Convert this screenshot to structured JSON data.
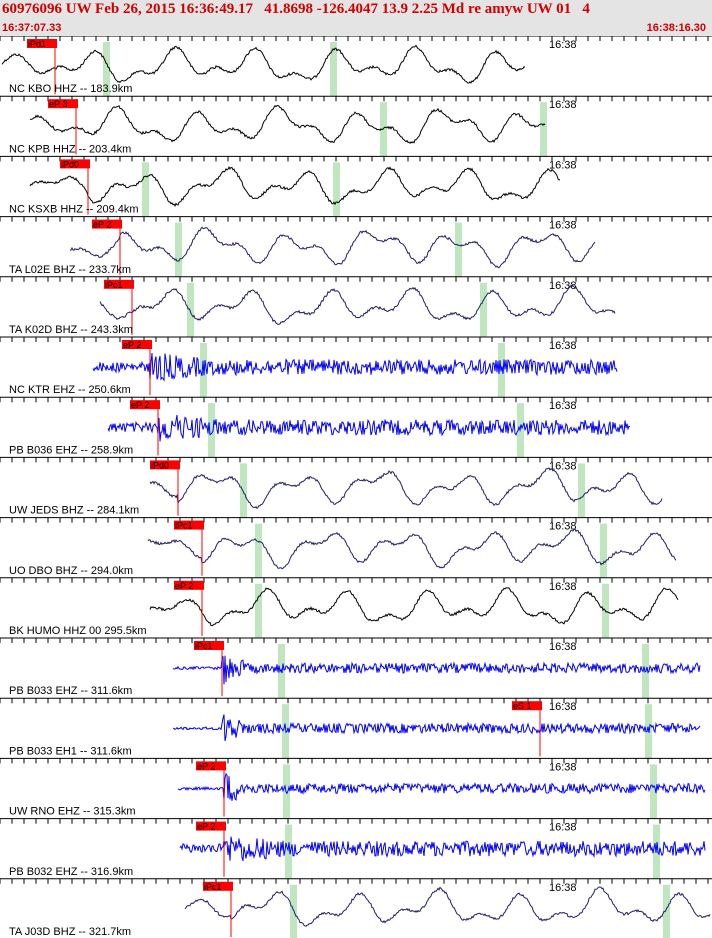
{
  "header": {
    "title": "60976096 UW Feb 26, 2015 16:36:49.17   41.8698 -126.4047 13.9 2.25 Md re amyw UW 01   4",
    "start_time": "16:37:07.33",
    "end_time": "16:38:16.30"
  },
  "colors": {
    "header_bg": "#e4e4e4",
    "header_text": "#d00000",
    "pick": "#ff0000",
    "trace_black": "#000000",
    "trace_blue": "#0000ff",
    "trace_navy": "#202060",
    "phase_band": "#bfe6bf"
  },
  "chart_data": {
    "type": "seismogram",
    "time_axis": {
      "start": "16:37:07.33",
      "end": "16:38:16.30",
      "minute_label": "16:38"
    },
    "traces": [
      {
        "label": "NC KBO HHZ -- 183.9km",
        "pick": "iPd1",
        "style": "smooth",
        "color": "black"
      },
      {
        "label": "NC KPB HHZ -- 203.4km",
        "pick": "eP 3",
        "style": "smooth",
        "color": "black"
      },
      {
        "label": "NC KSXB HHZ -- 209.4km",
        "pick": "iPd0",
        "style": "smooth",
        "color": "black"
      },
      {
        "label": "TA L02E BHZ -- 233.7km",
        "pick": "eP 2",
        "style": "smooth",
        "color": "navy"
      },
      {
        "label": "TA K02D BHZ -- 243.3km",
        "pick": "iPc1",
        "style": "smooth",
        "color": "navy"
      },
      {
        "label": "NC KTR EHZ -- 250.6km",
        "pick": "eP 2",
        "style": "noisy",
        "color": "blue"
      },
      {
        "label": "PB B036 EHZ -- 258.9km",
        "pick": "eP 2",
        "style": "noisy",
        "color": "blue"
      },
      {
        "label": "UW JEDS BHZ -- 284.1km",
        "pick": "iPd0",
        "style": "smooth",
        "color": "navy"
      },
      {
        "label": "UO DBO BHZ -- 294.0km",
        "pick": "iPc1",
        "style": "smooth",
        "color": "navy"
      },
      {
        "label": "BK HUMO HHZ 00 295.5km",
        "pick": "eP 2",
        "style": "smooth",
        "color": "black"
      },
      {
        "label": "PB B033 EHZ -- 311.6km",
        "pick": "iPc1",
        "style": "spiky",
        "color": "blue"
      },
      {
        "label": "PB B033 EH1 -- 311.6km",
        "pick": "",
        "pick_s": "eS 1",
        "style": "spiky",
        "color": "blue"
      },
      {
        "label": "UW RNO EHZ -- 315.3km",
        "pick": "eP 2",
        "style": "spiky",
        "color": "blue"
      },
      {
        "label": "PB B032 EHZ -- 316.9km",
        "pick": "eP 2",
        "style": "noisy",
        "color": "blue"
      },
      {
        "label": "TA J03D BHZ -- 321.7km",
        "pick": "iPc1",
        "style": "smooth",
        "color": "navy"
      }
    ]
  }
}
